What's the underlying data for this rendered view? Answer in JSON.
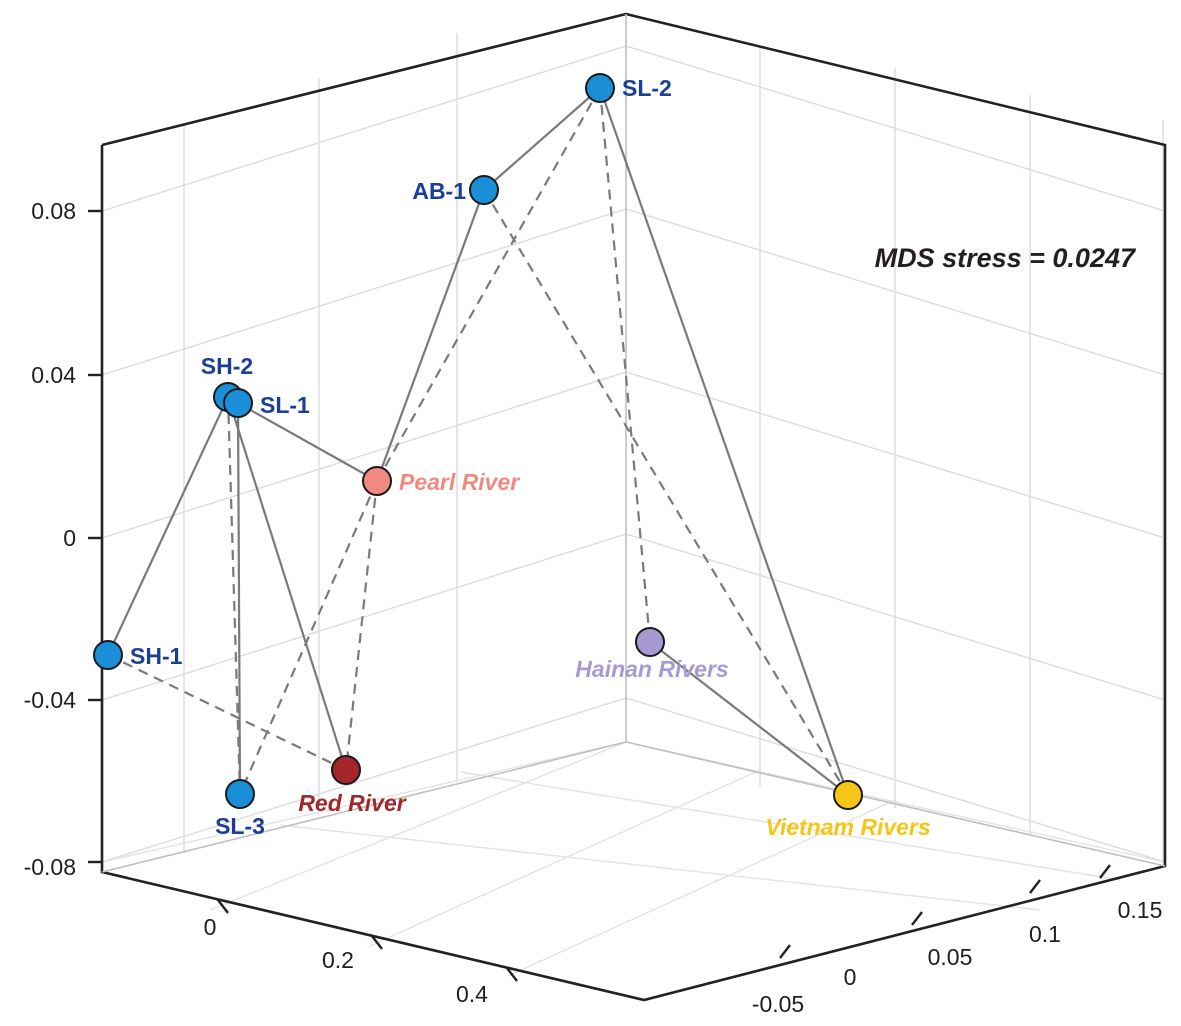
{
  "chart_data": {
    "type": "scatter3d",
    "annotation": "MDS stress = 0.0247",
    "z_ticks": [
      "0.08",
      "0.04",
      "0",
      "-0.04",
      "-0.08"
    ],
    "x_ticks": [
      "0",
      "0.2",
      "0.4"
    ],
    "y_ticks": [
      "-0.05",
      "0",
      "0.05",
      "0.1",
      "0.15"
    ],
    "colors": {
      "blue": "#1a8fd8",
      "blue_label": "#1b3f95",
      "pearl": "#f08a80",
      "red": "#a3262a",
      "hainan": "#a79ad3",
      "vietnam": "#f5c518",
      "axis": "#222222",
      "grid": "#d9d9d9",
      "link": "#7a7a7a"
    },
    "points": [
      {
        "id": "SL-2",
        "label": "SL-2",
        "color": "blue"
      },
      {
        "id": "AB-1",
        "label": "AB-1",
        "color": "blue"
      },
      {
        "id": "SH-2",
        "label": "SH-2",
        "color": "blue"
      },
      {
        "id": "SL-1",
        "label": "SL-1",
        "color": "blue"
      },
      {
        "id": "SH-1",
        "label": "SH-1",
        "color": "blue"
      },
      {
        "id": "SL-3",
        "label": "SL-3",
        "color": "blue"
      },
      {
        "id": "Pearl",
        "label": "Pearl River",
        "color": "pearl"
      },
      {
        "id": "Red",
        "label": "Red River",
        "color": "red"
      },
      {
        "id": "Hainan",
        "label": "Hainan Rivers",
        "color": "hainan"
      },
      {
        "id": "Vietnam",
        "label": "Vietnam Rivers",
        "color": "vietnam"
      }
    ],
    "links_solid": [
      [
        "AB-1",
        "SL-2"
      ],
      [
        "AB-1",
        "Pearl"
      ],
      [
        "SL-2",
        "Vietnam"
      ],
      [
        "SL-1",
        "Pearl"
      ],
      [
        "SH-2",
        "SH-1"
      ],
      [
        "SH-2",
        "Red"
      ],
      [
        "SL-1",
        "SL-3"
      ],
      [
        "Hainan",
        "Vietnam"
      ]
    ],
    "links_dashed": [
      [
        "SL-2",
        "Pearl"
      ],
      [
        "SL-2",
        "Hainan"
      ],
      [
        "AB-1",
        "Vietnam"
      ],
      [
        "SH-2",
        "SL-3"
      ],
      [
        "Pearl",
        "SL-3"
      ],
      [
        "Pearl",
        "Red"
      ],
      [
        "SH-1",
        "Red"
      ]
    ]
  }
}
